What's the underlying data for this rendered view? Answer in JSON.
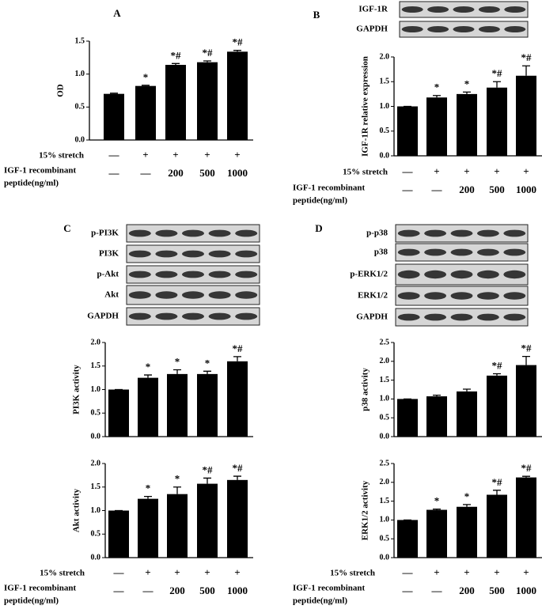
{
  "panels": [
    {
      "letter": "A"
    },
    {
      "letter": "B",
      "blots": [
        "IGF-1R",
        "GAPDH"
      ]
    },
    {
      "letter": "C",
      "blots": [
        "p-PI3K",
        "PI3K",
        "p-Akt",
        "Akt",
        "GAPDH"
      ]
    },
    {
      "letter": "D",
      "blots": [
        "p-p38",
        "p38",
        "p-ERK1/2",
        "ERK1/2",
        "GAPDH"
      ]
    }
  ],
  "treatments": [
    {
      "label": [
        "15% stretch"
      ],
      "levels": [
        "—",
        "+",
        "+",
        "+",
        "+"
      ]
    },
    {
      "label": [
        "IGF-1 recombinant",
        "peptide(ng/ml)"
      ],
      "levels": [
        "—",
        "—",
        "200",
        "500",
        "1000"
      ]
    }
  ],
  "chart_data": [
    {
      "type": "bar",
      "ylabel": "OD",
      "color": "#000000",
      "ylim": [
        0,
        1.5
      ],
      "yticks": [
        {
          "value": 0,
          "label": "0.0"
        },
        0.5,
        {
          "value": 1,
          "label": "1.0"
        },
        1.5
      ],
      "values": [
        0.7,
        0.82,
        1.14,
        1.18,
        1.34
      ],
      "errors": [
        0.01,
        0.01,
        0.02,
        0.02,
        0.02
      ],
      "annotations": [
        null,
        "*",
        "*#",
        "*#",
        "*#"
      ]
    },
    {
      "type": "bar",
      "ylabel": "IGF-1R relative expression",
      "color": "#000000",
      "ylim": [
        0,
        2
      ],
      "yticks": [
        {
          "value": 0,
          "label": "0.0"
        },
        0.5,
        {
          "value": 1,
          "label": "1.0"
        },
        1.5,
        {
          "value": 2,
          "label": "2.0"
        }
      ],
      "values": [
        1.0,
        1.18,
        1.25,
        1.38,
        1.62
      ],
      "errors": [
        0,
        0.04,
        0.04,
        0.12,
        0.2
      ],
      "annotations": [
        null,
        "*",
        "*",
        "*#",
        "*#"
      ]
    },
    {
      "type": "bar",
      "ylabel": "PI3K activity",
      "color": "#000000",
      "ylim": [
        0,
        2
      ],
      "yticks": [
        {
          "value": 0,
          "label": "0.0"
        },
        0.5,
        {
          "value": 1,
          "label": "1.0"
        },
        1.5,
        {
          "value": 2,
          "label": "2.0"
        }
      ],
      "values": [
        1.0,
        1.25,
        1.33,
        1.33,
        1.6
      ],
      "errors": [
        0,
        0.06,
        0.09,
        0.06,
        0.1
      ],
      "annotations": [
        null,
        "*",
        "*",
        "*",
        "*#"
      ]
    },
    {
      "type": "bar",
      "ylabel": "Akt activity",
      "color": "#000000",
      "ylim": [
        0,
        2
      ],
      "yticks": [
        {
          "value": 0,
          "label": "0.0"
        },
        0.5,
        {
          "value": 1,
          "label": "1.0"
        },
        1.5,
        {
          "value": 2,
          "label": "2.0"
        }
      ],
      "values": [
        1.0,
        1.25,
        1.35,
        1.57,
        1.65
      ],
      "errors": [
        0,
        0.05,
        0.15,
        0.12,
        0.08
      ],
      "annotations": [
        null,
        "*",
        "*",
        "*#",
        "*#"
      ]
    },
    {
      "type": "bar",
      "ylabel": "p38 activity",
      "color": "#000000",
      "ylim": [
        0,
        2.5
      ],
      "yticks": [
        {
          "value": 0,
          "label": "0.0"
        },
        0.5,
        {
          "value": 1,
          "label": "1.0"
        },
        1.5,
        {
          "value": 2,
          "label": "2.0"
        },
        2.5
      ],
      "values": [
        1.0,
        1.07,
        1.2,
        1.62,
        1.9
      ],
      "errors": [
        0,
        0.03,
        0.06,
        0.05,
        0.23
      ],
      "annotations": [
        null,
        null,
        null,
        "*#",
        "*#"
      ]
    },
    {
      "type": "bar",
      "ylabel": "ERK1/2 activity",
      "color": "#000000",
      "ylim": [
        0,
        2.5
      ],
      "yticks": [
        {
          "value": 0,
          "label": "0.0"
        },
        0.5,
        {
          "value": 1,
          "label": "1.0"
        },
        1.5,
        {
          "value": 2,
          "label": "2.0"
        },
        2.5
      ],
      "values": [
        1.0,
        1.27,
        1.35,
        1.67,
        2.13
      ],
      "errors": [
        0,
        0.02,
        0.06,
        0.12,
        0.03
      ],
      "annotations": [
        null,
        "*",
        "*",
        "*#",
        "*#"
      ]
    }
  ]
}
